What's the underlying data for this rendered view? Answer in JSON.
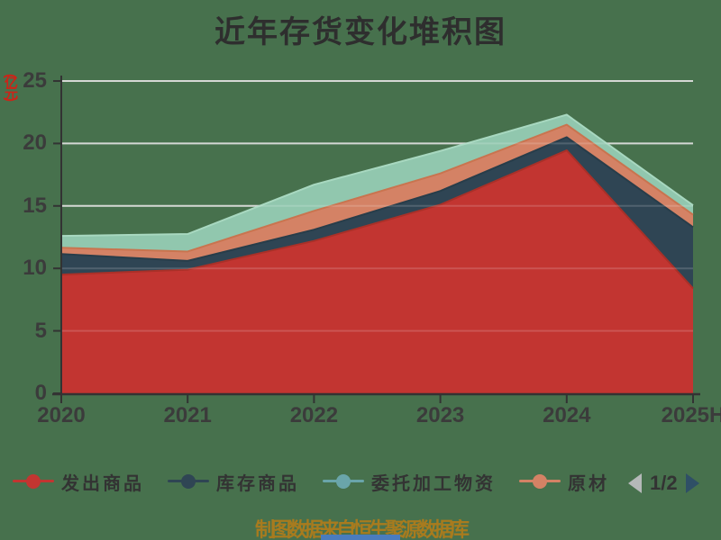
{
  "title": "近年存货变化堆积图",
  "y_axis_unit": "(亿元)",
  "footer": {
    "source_text": "制图数据来自恒生聚源数据库"
  },
  "legend": {
    "items": [
      {
        "label": "发出商品",
        "color": "#c23531",
        "clipped": false
      },
      {
        "label": "库存商品",
        "color": "#2f4554",
        "clipped": false
      },
      {
        "label": "委托加工物资",
        "color": "#6aa5aa",
        "clipped": false
      },
      {
        "label": "原材",
        "color": "#d48265",
        "clipped": true
      }
    ],
    "page_indicator": "1/2",
    "prev_arrow_color": "#b5b9b9",
    "next_arrow_color": "#2f4f66"
  },
  "chart_data": {
    "type": "area",
    "stacked": true,
    "title": "近年存货变化堆积图",
    "ylabel": "(亿元)",
    "xlabel": "",
    "categories": [
      "2020",
      "2021",
      "2022",
      "2023",
      "2024",
      "2025H"
    ],
    "series": [
      {
        "name": "发出商品",
        "color": "#c23531",
        "line_color": "#a93028",
        "values": [
          9.5,
          9.9,
          12.2,
          15.1,
          19.45,
          8.4
        ]
      },
      {
        "name": "库存商品",
        "color": "#2f4554",
        "line_color": "#283d4a",
        "values": [
          1.65,
          0.7,
          0.9,
          1.1,
          1.05,
          4.9
        ]
      },
      {
        "name": "原材",
        "color": "#d48265",
        "line_color": "#c9744f",
        "values": [
          0.5,
          0.75,
          1.5,
          1.4,
          1.0,
          1.0
        ]
      },
      {
        "name": "",
        "color": "#91c7ae",
        "line_color": "#a8d8c0",
        "values": [
          0.95,
          1.4,
          2.1,
          1.8,
          0.8,
          0.75
        ]
      }
    ],
    "ylim": [
      0,
      25
    ],
    "y_ticks": [
      0,
      5,
      10,
      15,
      20,
      25
    ],
    "grid": true,
    "legend_position": "bottom"
  },
  "colors": {
    "background": "#47714d",
    "axis": "#333333",
    "tick_label": "#3b3b3b",
    "title": "#2e2e2e",
    "gridline": "#ccd1cc",
    "footer_text": "#a87b1e",
    "unit_label": "#cc2418",
    "bottom_bar": "#4a7cbe"
  }
}
